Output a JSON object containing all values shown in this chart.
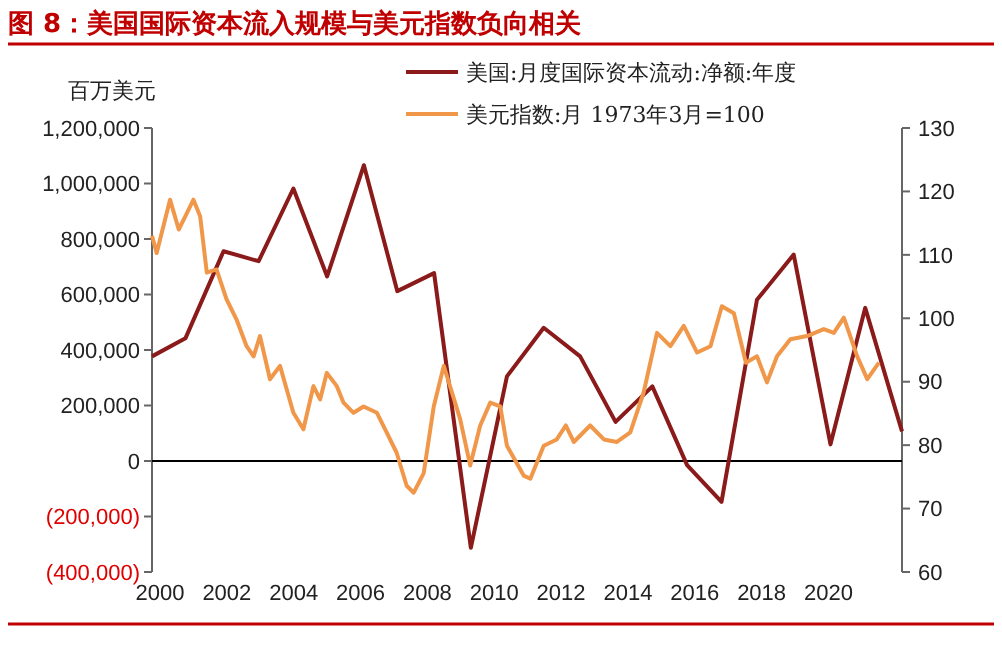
{
  "chart_data": {
    "type": "line",
    "title": "图 8：美国国际资本流入规模与美元指数负向相关",
    "ylabel": "百万美元",
    "xlim": [
      1999.76,
      2022.2
    ],
    "xticks": [
      2000,
      2002,
      2004,
      2006,
      2008,
      2010,
      2012,
      2014,
      2016,
      2018,
      2020
    ],
    "ylim": [
      -400000,
      1200000
    ],
    "yticks": [
      {
        "value": -400000,
        "label": "(400,000)"
      },
      {
        "value": -200000,
        "label": "(200,000)"
      },
      0,
      {
        "value": 200000,
        "label": "200,000"
      },
      {
        "value": 400000,
        "label": "400,000"
      },
      {
        "value": 600000,
        "label": "600,000"
      },
      {
        "value": 800000,
        "label": "800,000"
      },
      {
        "value": 1000000,
        "label": "1,000,000"
      },
      {
        "value": 1200000,
        "label": "1,200,000"
      }
    ],
    "y2lim": [
      60,
      130
    ],
    "y2ticks": [
      60,
      70,
      80,
      90,
      100,
      110,
      120,
      130
    ],
    "legend": "top",
    "series": [
      {
        "name": "美国:月度国际资本流动:净额:年度",
        "color": "#8b1a1a",
        "x": [
          1999.76,
          2000.76,
          2001.9,
          2002.95,
          2003.99,
          2005.0,
          2006.1,
          2007.1,
          2008.2,
          2009.3,
          2010.38,
          2011.48,
          2012.57,
          2013.63,
          2014.73,
          2015.77,
          2016.8,
          2017.86,
          2018.96,
          2020.06,
          2021.1,
          2022.2
        ],
        "values": [
          377000,
          442000,
          756000,
          720000,
          982000,
          665000,
          1066000,
          612000,
          677000,
          -313000,
          305000,
          480000,
          377000,
          141000,
          269000,
          -15000,
          -147000,
          581000,
          744000,
          60000,
          552000,
          107000
        ]
      },
      {
        "name": "美元指数:月 1973年3月=100",
        "color": "#f0974a",
        "axis": "y2",
        "x": [
          1999.76,
          1999.9,
          2000.3,
          2000.56,
          2000.76,
          2001.0,
          2001.2,
          2001.4,
          2001.69,
          2001.99,
          2002.29,
          2002.59,
          2002.8,
          2002.99,
          2003.29,
          2003.59,
          2003.99,
          2004.29,
          2004.59,
          2004.79,
          2004.99,
          2005.29,
          2005.49,
          2005.79,
          2006.09,
          2006.49,
          2006.78,
          2007.08,
          2007.38,
          2007.59,
          2007.89,
          2008.19,
          2008.49,
          2008.98,
          2009.28,
          2009.58,
          2009.88,
          2010.18,
          2010.38,
          2010.88,
          2011.08,
          2011.48,
          2011.87,
          2012.14,
          2012.38,
          2012.87,
          2013.28,
          2013.67,
          2014.07,
          2014.47,
          2014.87,
          2015.27,
          2015.67,
          2016.07,
          2016.47,
          2016.81,
          2017.17,
          2017.53,
          2017.86,
          2018.16,
          2018.46,
          2018.86,
          2019.36,
          2019.86,
          2020.16,
          2020.46,
          2020.86,
          2021.16,
          2021.51
        ],
        "values": [
          113.0,
          110.3,
          118.7,
          114.0,
          116.1,
          118.7,
          116.1,
          107.2,
          107.7,
          103.0,
          99.8,
          95.6,
          94.0,
          97.2,
          90.4,
          92.5,
          85.1,
          82.5,
          89.3,
          87.2,
          91.4,
          89.3,
          86.7,
          85.1,
          86.1,
          85.1,
          82.0,
          78.8,
          73.6,
          72.5,
          75.6,
          86.1,
          92.5,
          84.1,
          76.8,
          83.1,
          86.7,
          86.1,
          79.9,
          75.2,
          74.7,
          79.9,
          80.9,
          83.1,
          80.5,
          83.1,
          80.9,
          80.5,
          82.0,
          88.3,
          97.7,
          95.6,
          98.8,
          94.6,
          95.6,
          101.9,
          100.8,
          93.0,
          94.0,
          89.9,
          94.0,
          96.7,
          97.2,
          98.3,
          97.7,
          100.1,
          94.0,
          90.4,
          93.0
        ]
      }
    ]
  }
}
